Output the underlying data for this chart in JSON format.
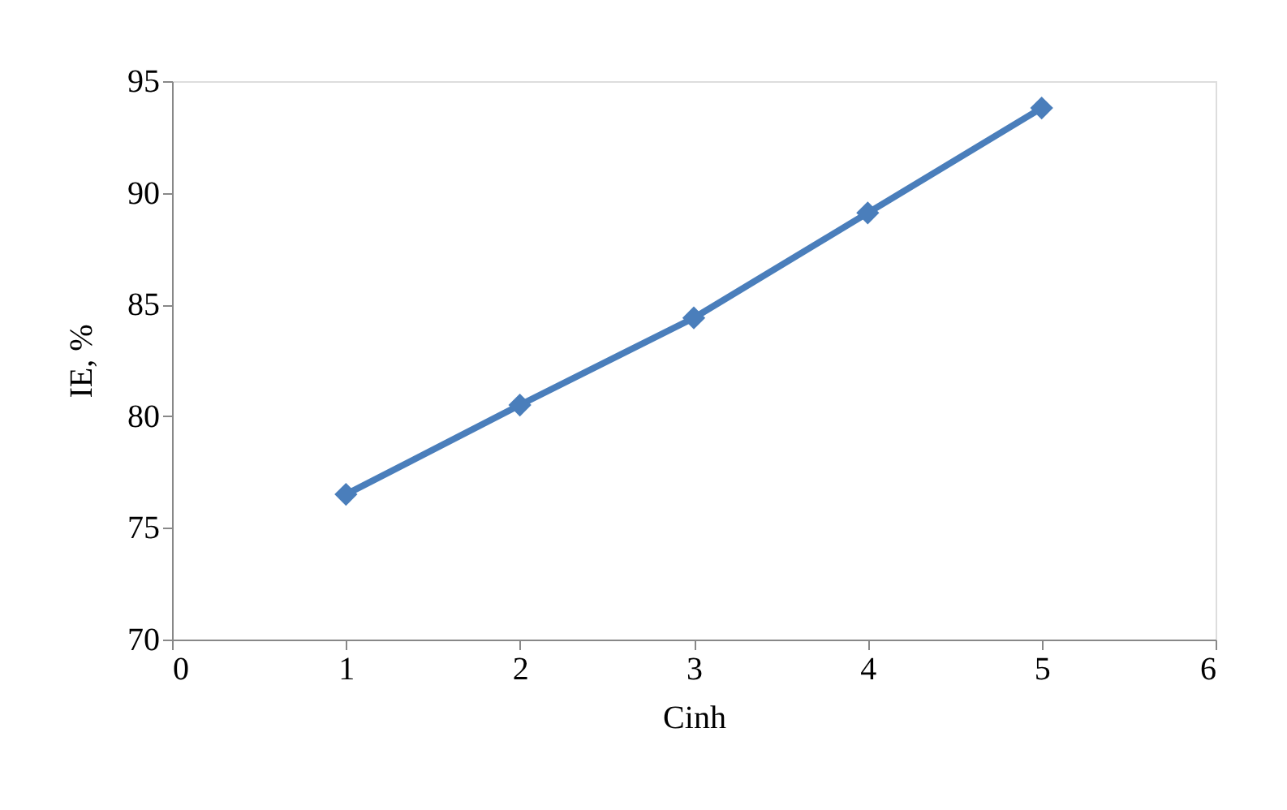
{
  "chart_data": {
    "type": "line",
    "xlabel": "Cinh",
    "ylabel": "IE, %",
    "x": [
      1,
      2,
      3,
      4,
      5
    ],
    "series": [
      {
        "color": "#4a7ebb",
        "values": [
          76.5,
          80.5,
          84.4,
          89.1,
          93.8
        ]
      }
    ],
    "xlim": [
      0,
      6
    ],
    "xticks": [
      0,
      1,
      2,
      3,
      4,
      5,
      6
    ],
    "ylim": [
      70,
      95
    ],
    "yticks": [
      70,
      75,
      80,
      85,
      90,
      95
    ],
    "grid": false,
    "legend": false,
    "marker": "diamond",
    "line_style": "solid"
  }
}
